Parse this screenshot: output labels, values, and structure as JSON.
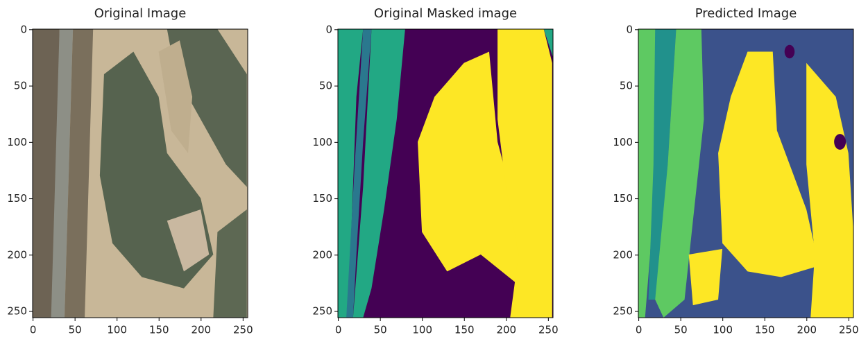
{
  "chart_data": [
    {
      "type": "image",
      "title": "Original Image",
      "xlim": [
        -0.5,
        255.5
      ],
      "ylim": [
        255.5,
        -0.5
      ],
      "xticks": [
        0,
        50,
        100,
        150,
        200,
        250
      ],
      "yticks": [
        0,
        50,
        100,
        150,
        200,
        250
      ]
    },
    {
      "type": "image",
      "title": "Original Masked image",
      "xlim": [
        -0.5,
        255.5
      ],
      "ylim": [
        255.5,
        -0.5
      ],
      "xticks": [
        0,
        50,
        100,
        150,
        200,
        250
      ],
      "yticks": [
        0,
        50,
        100,
        150,
        200,
        250
      ]
    },
    {
      "type": "image",
      "title": "Predicted Image",
      "xlim": [
        -0.5,
        255.5
      ],
      "ylim": [
        255.5,
        -0.5
      ],
      "xticks": [
        0,
        50,
        100,
        150,
        200,
        250
      ],
      "yticks": [
        0,
        50,
        100,
        150,
        200,
        250
      ]
    }
  ]
}
